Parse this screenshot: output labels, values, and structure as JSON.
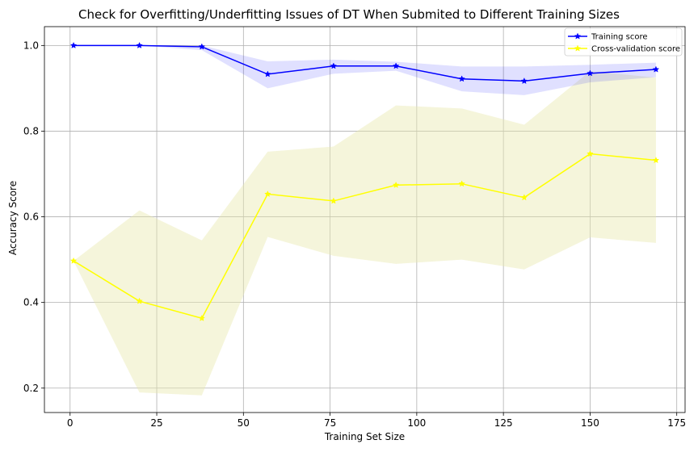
{
  "chart_data": {
    "type": "line",
    "title": "Check for Overfitting/Underfitting Issues of DT When Submited to Different Training Sizes",
    "xlabel": "Training Set Size",
    "ylabel": "Accuracy Score",
    "xlim": [
      -7.4,
      177.4
    ],
    "ylim": [
      0.143,
      1.044
    ],
    "xticks": [
      0,
      25,
      50,
      75,
      100,
      125,
      150,
      175
    ],
    "yticks": [
      0.2,
      0.4,
      0.6,
      0.8,
      1.0
    ],
    "xtick_labels": [
      "0",
      "25",
      "50",
      "75",
      "100",
      "125",
      "150",
      "175"
    ],
    "ytick_labels": [
      "0.2",
      "0.4",
      "0.6",
      "0.8",
      "1.0"
    ],
    "grid": true,
    "legend_position": "top-right",
    "x": [
      1,
      20,
      38,
      57,
      76,
      94,
      113,
      131,
      150,
      169
    ],
    "series": [
      {
        "name": "Training score",
        "color": "#0000ff",
        "band_color": "#0000ff",
        "marker": "star",
        "values": [
          1.0,
          1.0,
          0.997,
          0.933,
          0.952,
          0.952,
          0.922,
          0.917,
          0.935,
          0.944
        ],
        "band_upper": [
          1.0,
          1.0,
          1.0,
          0.963,
          0.967,
          0.962,
          0.951,
          0.951,
          0.955,
          0.96
        ],
        "band_lower": [
          1.0,
          1.0,
          0.989,
          0.9,
          0.934,
          0.941,
          0.893,
          0.884,
          0.914,
          0.926
        ]
      },
      {
        "name": "Cross-validation score",
        "color": "#ffff00",
        "band_color": "#e8e8b0",
        "marker": "star",
        "values": [
          0.497,
          0.403,
          0.363,
          0.653,
          0.637,
          0.674,
          0.677,
          0.645,
          0.747,
          0.732
        ],
        "band_upper": [
          0.497,
          0.615,
          0.545,
          0.752,
          0.764,
          0.86,
          0.853,
          0.815,
          0.94,
          0.925
        ],
        "band_lower": [
          0.497,
          0.19,
          0.183,
          0.553,
          0.509,
          0.49,
          0.5,
          0.477,
          0.552,
          0.539
        ]
      }
    ]
  }
}
